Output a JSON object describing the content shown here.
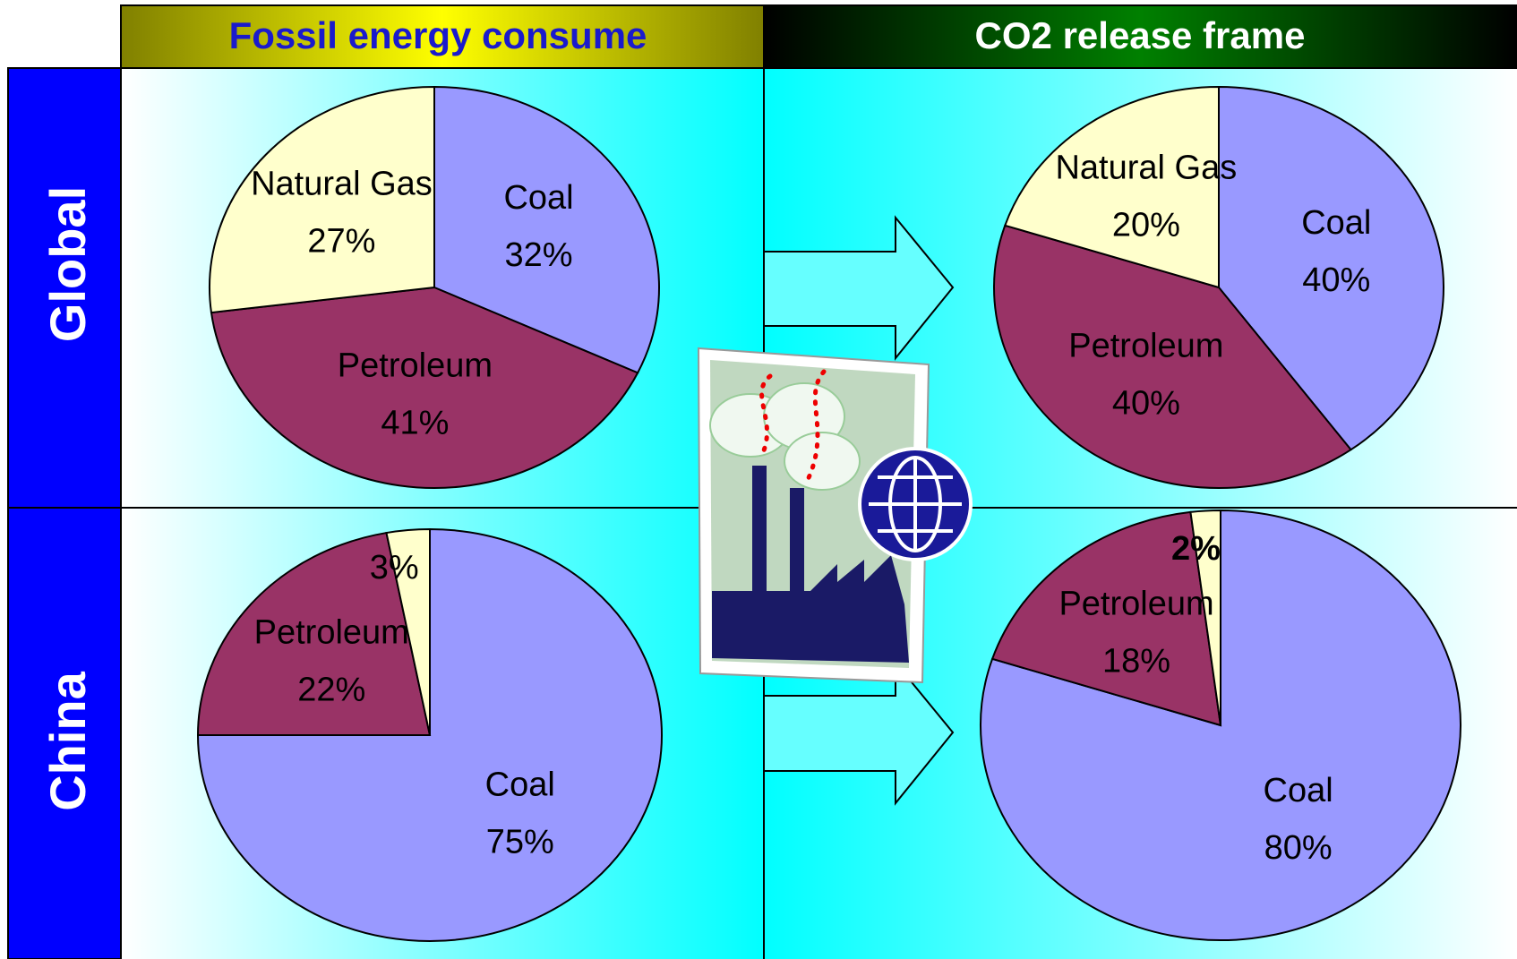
{
  "columns": [
    "Fossil energy consume",
    "CO2 release frame"
  ],
  "rows": [
    "Global",
    "China"
  ],
  "chart_data": [
    {
      "type": "pie",
      "categories": [
        "Coal",
        "Petroleum",
        "Natural Gas"
      ],
      "values": [
        32,
        41,
        27
      ],
      "value_labels": [
        "32%",
        "41%",
        "27%"
      ],
      "colors": [
        "#9999ff",
        "#993366",
        "#ffffcc"
      ]
    },
    {
      "type": "pie",
      "categories": [
        "Coal",
        "Petroleum",
        "Natural Gas"
      ],
      "values": [
        40,
        40,
        20
      ],
      "value_labels": [
        "40%",
        "40%",
        "20%"
      ],
      "colors": [
        "#9999ff",
        "#993366",
        "#ffffcc"
      ]
    },
    {
      "type": "pie",
      "categories": [
        "Coal",
        "Petroleum",
        null
      ],
      "values": [
        75,
        22,
        3
      ],
      "value_labels": [
        "75%",
        "22%",
        "3%"
      ],
      "colors": [
        "#9999ff",
        "#993366",
        "#ffffcc"
      ]
    },
    {
      "type": "pie",
      "categories": [
        "Coal",
        "Petroleum",
        null
      ],
      "values": [
        80,
        18,
        2
      ],
      "value_labels": [
        "80%",
        "18%",
        "2%"
      ],
      "colors": [
        "#9999ff",
        "#993366",
        "#ffffcc"
      ]
    }
  ]
}
